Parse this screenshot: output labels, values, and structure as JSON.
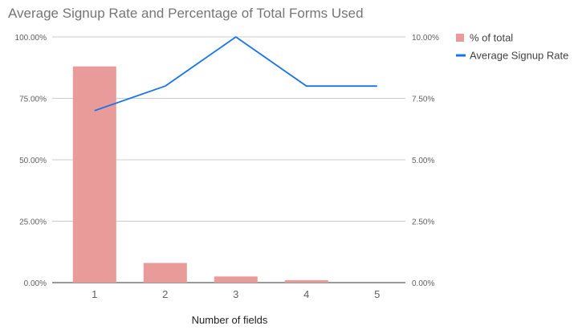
{
  "chart_data": {
    "type": "bar",
    "title": "Average Signup Rate and Percentage of Total Forms Used",
    "xlabel": "Number of fields",
    "ylabel_left": "",
    "ylabel_right": "",
    "categories": [
      "1",
      "2",
      "3",
      "4",
      "5"
    ],
    "series": [
      {
        "name": "% of total",
        "type": "bar",
        "axis": "left",
        "color": "#e99b9a",
        "values": [
          88.0,
          8.0,
          2.5,
          1.0,
          0.0
        ]
      },
      {
        "name": "Average Signup Rate",
        "type": "line",
        "axis": "right",
        "color": "#1a73e8",
        "values": [
          7.0,
          8.0,
          10.0,
          8.0,
          8.0
        ]
      }
    ],
    "ylim_left": [
      0,
      100
    ],
    "ylim_right": [
      0,
      10
    ],
    "yticks_left": [
      "0.00%",
      "25.00%",
      "50.00%",
      "75.00%",
      "100.00%"
    ],
    "yticks_right": [
      "0.00%",
      "2.50%",
      "5.00%",
      "7.50%",
      "10.00%"
    ],
    "grid": true,
    "legend_position": "right"
  }
}
